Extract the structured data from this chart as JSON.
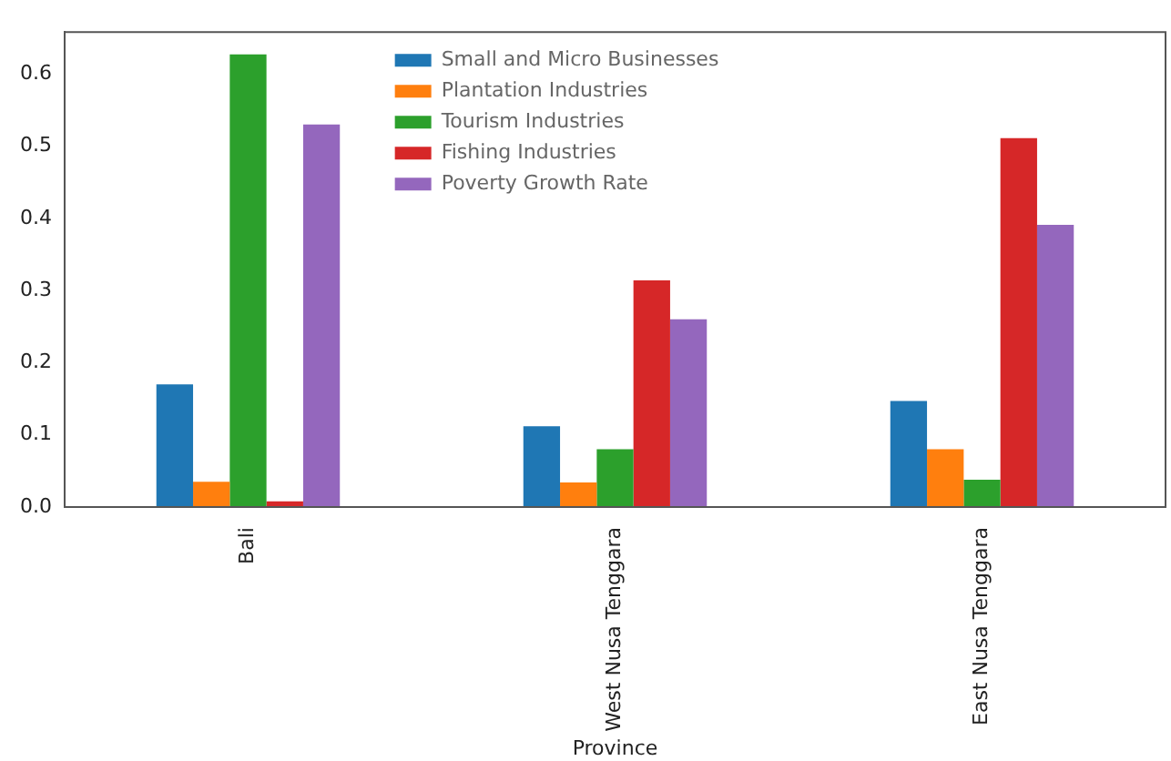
{
  "chart_data": {
    "type": "bar",
    "xlabel": "Province",
    "categories": [
      "Bali",
      "West Nusa Tenggara",
      "East Nusa Tenggara"
    ],
    "series": [
      {
        "name": "Small and Micro Businesses",
        "color": "#1f77b4",
        "values": [
          0.17,
          0.112,
          0.147
        ]
      },
      {
        "name": "Plantation Industries",
        "color": "#ff7f0e",
        "values": [
          0.035,
          0.034,
          0.08
        ]
      },
      {
        "name": "Tourism Industries",
        "color": "#2ca02c",
        "values": [
          0.627,
          0.08,
          0.038
        ]
      },
      {
        "name": "Fishing Industries",
        "color": "#d62728",
        "values": [
          0.008,
          0.314,
          0.511
        ]
      },
      {
        "name": "Poverty Growth Rate",
        "color": "#9467bd",
        "values": [
          0.53,
          0.26,
          0.391
        ]
      }
    ],
    "ylim": [
      0,
      0.658
    ],
    "yticks": [
      {
        "value": 0,
        "label": "0.0"
      },
      0.1,
      0.2,
      0.3,
      0.4,
      0.5,
      0.6
    ],
    "legend": "top",
    "grid": false
  }
}
